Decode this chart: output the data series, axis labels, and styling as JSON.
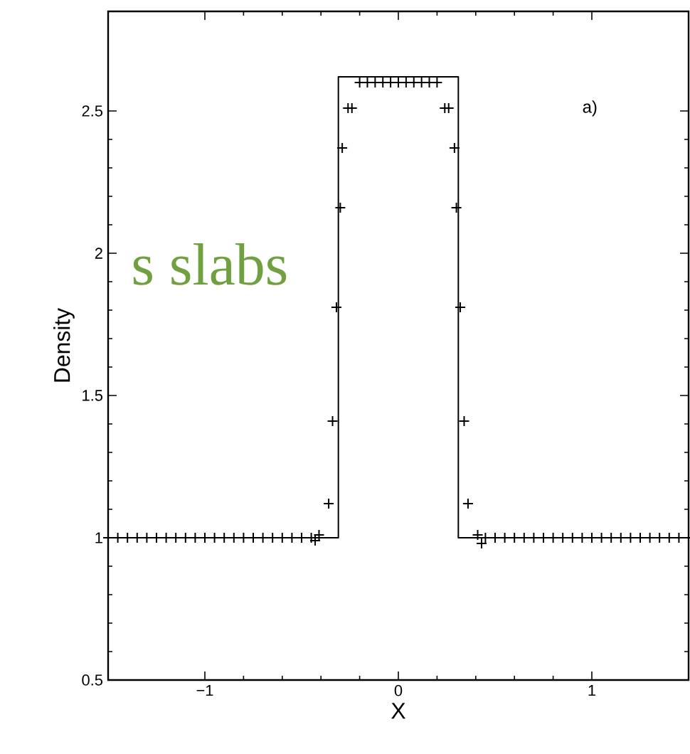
{
  "chart_data": {
    "type": "line",
    "xlabel": "X",
    "ylabel": "Density",
    "annotations": [
      "a)",
      "s slabs"
    ],
    "xlim": [
      -1.5,
      1.5
    ],
    "ylim": [
      0.5,
      2.85
    ],
    "xticks": [
      {
        "value": -1,
        "label": "−1"
      },
      0,
      1
    ],
    "yticks": [
      0.5,
      1,
      1.5,
      2,
      2.5
    ],
    "series": [
      {
        "color": "#000000",
        "x": [
          -1.5,
          -0.31,
          -0.31,
          0.31,
          0.31,
          1.5
        ],
        "values": [
          1,
          1,
          2.62,
          2.62,
          1,
          1
        ]
      },
      {
        "type": "scatter",
        "marker": "cross",
        "color": "#000000",
        "x": [
          -1.5,
          -1.45,
          -1.4,
          -1.35,
          -1.3,
          -1.25,
          -1.2,
          -1.15,
          -1.1,
          -1.05,
          -1.0,
          -0.95,
          -0.9,
          -0.85,
          -0.8,
          -0.75,
          -0.7,
          -0.65,
          -0.6,
          -0.55,
          -0.5,
          -0.45,
          -0.43,
          -0.41,
          -0.36,
          -0.34,
          -0.32,
          -0.3,
          -0.29,
          -0.26,
          -0.24,
          -0.2,
          -0.16,
          -0.12,
          -0.08,
          -0.04,
          0,
          0.04,
          0.08,
          0.12,
          0.16,
          0.2,
          0.24,
          0.26,
          0.29,
          0.3,
          0.32,
          0.34,
          0.36,
          0.41,
          0.43,
          0.45,
          0.5,
          0.55,
          0.6,
          0.65,
          0.7,
          0.75,
          0.8,
          0.85,
          0.9,
          0.95,
          1.0,
          1.05,
          1.1,
          1.15,
          1.2,
          1.25,
          1.3,
          1.35,
          1.4,
          1.45,
          1.5
        ],
        "values": [
          1,
          1,
          1,
          1,
          1,
          1,
          1,
          1,
          1,
          1,
          1,
          1,
          1,
          1,
          1,
          1,
          1,
          1,
          1,
          1,
          1,
          1,
          0.99,
          1.01,
          1.12,
          1.41,
          1.81,
          2.16,
          2.37,
          2.51,
          2.51,
          2.6,
          2.6,
          2.6,
          2.6,
          2.6,
          2.6,
          2.6,
          2.6,
          2.6,
          2.6,
          2.6,
          2.51,
          2.51,
          2.37,
          2.16,
          1.81,
          1.41,
          1.12,
          1.01,
          0.98,
          1,
          1,
          1,
          1,
          1,
          1,
          1,
          1,
          1,
          1,
          1,
          1,
          1,
          1,
          1,
          1,
          1,
          1,
          1,
          1,
          1,
          1
        ]
      }
    ]
  }
}
